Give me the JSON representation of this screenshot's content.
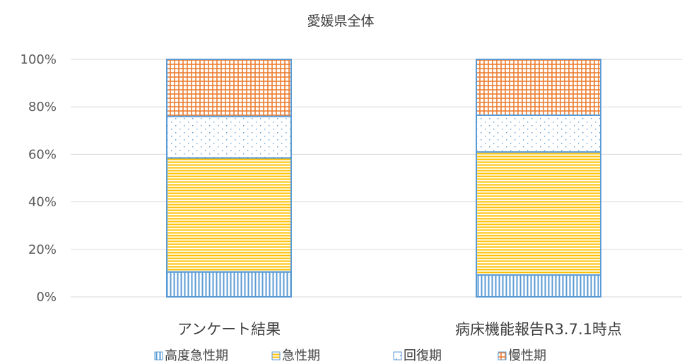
{
  "chart_data": {
    "type": "bar",
    "stacked": true,
    "title": "愛媛県全体",
    "categories": [
      "アンケート結果",
      "病床機能報告R3.7.1時点"
    ],
    "ylim": [
      0,
      100
    ],
    "yticks": [
      "0%",
      "20%",
      "40%",
      "60%",
      "80%",
      "100%"
    ],
    "ytick_values": [
      0,
      20,
      40,
      60,
      80,
      100
    ],
    "grid": true,
    "legend_position": "bottom",
    "series": [
      {
        "name": "高度急性期",
        "values": [
          10.5,
          9.2
        ],
        "color": "#5b9bd5",
        "pattern": "vertical"
      },
      {
        "name": "急性期",
        "values": [
          48.0,
          51.8
        ],
        "color": "#ffc000",
        "pattern": "horizontal"
      },
      {
        "name": "回復期",
        "values": [
          17.5,
          15.5
        ],
        "color": "#5b9bd5",
        "pattern": "dots"
      },
      {
        "name": "慢性期",
        "values": [
          24.0,
          23.5
        ],
        "color": "#ed7d31",
        "pattern": "grid"
      }
    ]
  }
}
